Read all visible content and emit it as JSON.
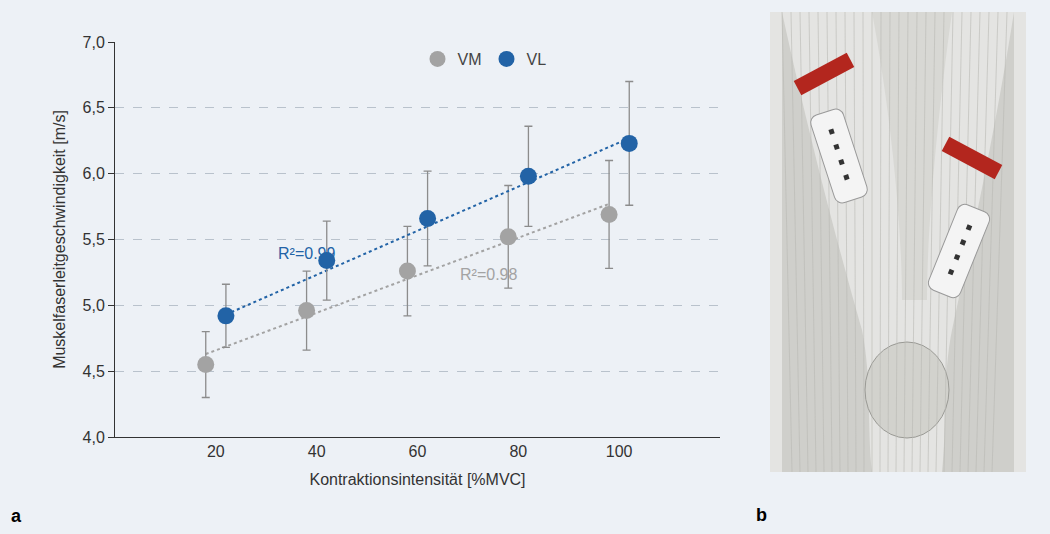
{
  "chart_data": {
    "type": "scatter",
    "panel_labels": [
      "a",
      "b"
    ],
    "x_title": "Kontraktionsintensität [%MVC]",
    "y_title": "Muskelfaserleitgeschwindigkeit [m/s]",
    "xlim": [
      0,
      120
    ],
    "xticks": [
      20,
      40,
      60,
      80,
      100
    ],
    "ylim": [
      4.0,
      7.0
    ],
    "yticks": [
      {
        "value": 4.0,
        "label": "4,0"
      },
      {
        "value": 4.5,
        "label": "4,5"
      },
      {
        "value": 5.0,
        "label": "5,0"
      },
      {
        "value": 5.5,
        "label": "5,5"
      },
      {
        "value": 6.0,
        "label": "6,0"
      },
      {
        "value": 6.5,
        "label": "6,5"
      },
      {
        "value": 7.0,
        "label": "7,0"
      }
    ],
    "grid": true,
    "legend": "top",
    "series": [
      {
        "name": "VM",
        "color": "#a3a3a3",
        "marker": "circle",
        "x": [
          18,
          38,
          58,
          78,
          98
        ],
        "values": [
          4.55,
          4.96,
          5.26,
          5.52,
          5.69
        ],
        "errors": [
          0.25,
          0.3,
          0.34,
          0.39,
          0.41
        ],
        "trend": {
          "x": [
            18,
            98
          ],
          "values": [
            4.63,
            5.77
          ],
          "line_style": "dotted",
          "label": "R²=0.98"
        }
      },
      {
        "name": "VL",
        "color": "#2263a6",
        "marker": "circle",
        "x": [
          22,
          42,
          62,
          82,
          102
        ],
        "values": [
          4.92,
          5.34,
          5.66,
          5.98,
          6.23
        ],
        "errors": [
          0.24,
          0.3,
          0.36,
          0.38,
          0.47
        ],
        "trend": {
          "x": [
            22,
            102
          ],
          "values": [
            4.93,
            6.27
          ],
          "line_style": "dotted",
          "label": "R²=0.99"
        }
      }
    ]
  }
}
